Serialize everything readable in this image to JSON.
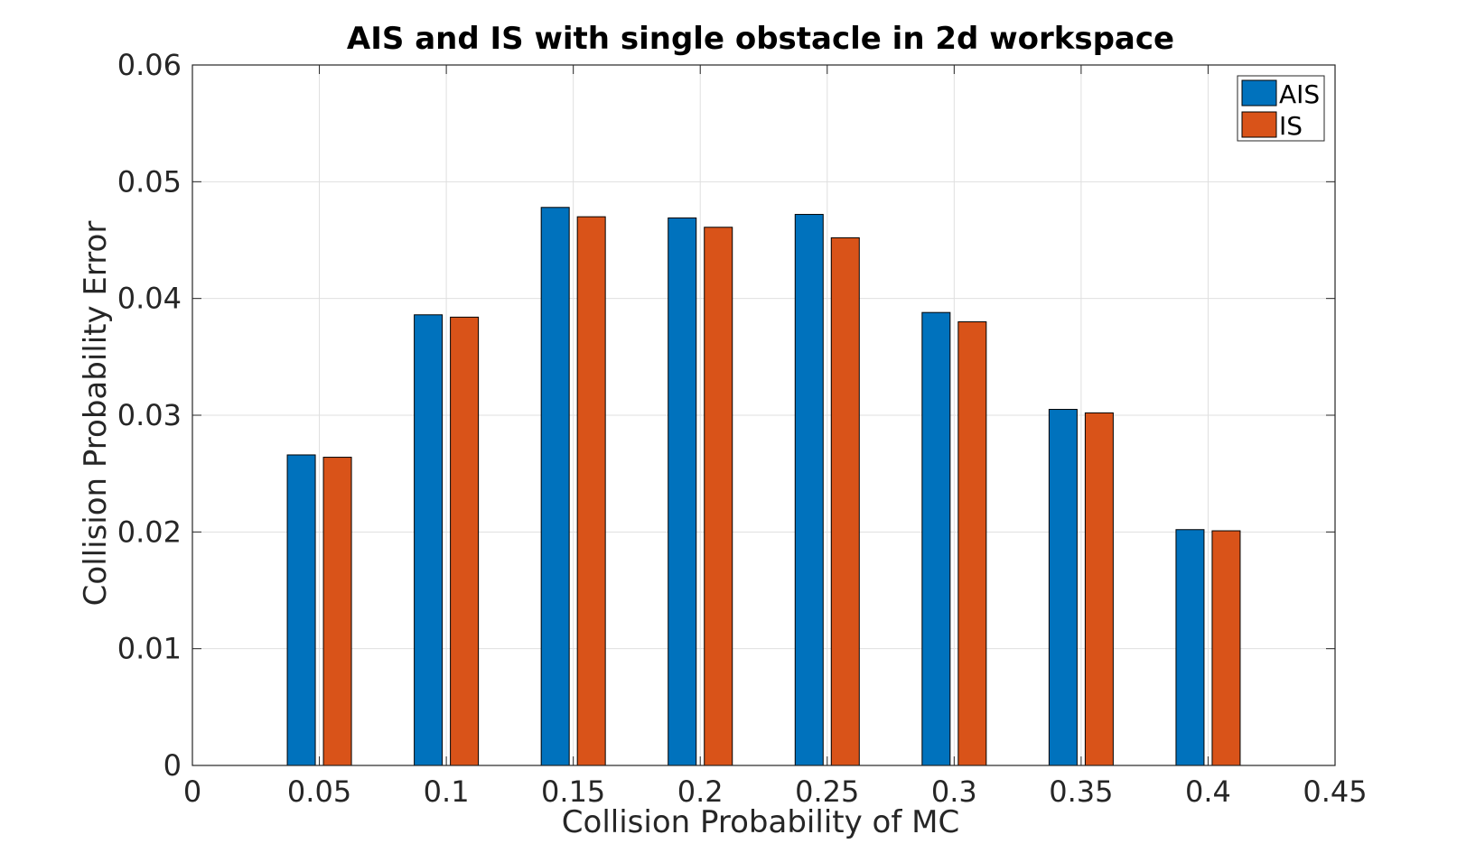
{
  "chart_data": {
    "type": "bar",
    "title": "AIS and IS with single obstacle in 2d workspace",
    "xlabel": "Collision Probability of MC",
    "ylabel": "Collision Probability Error",
    "x": [
      0.05,
      0.1,
      0.15,
      0.2,
      0.25,
      0.3,
      0.35,
      0.4
    ],
    "xlim": [
      0,
      0.45
    ],
    "ylim": [
      0,
      0.06
    ],
    "xticks": [
      "0",
      "0.05",
      "0.1",
      "0.15",
      "0.2",
      "0.25",
      "0.3",
      "0.35",
      "0.4",
      "0.45"
    ],
    "yticks": [
      "0",
      "0.01",
      "0.02",
      "0.03",
      "0.04",
      "0.05",
      "0.06"
    ],
    "grid": true,
    "legend_position": "top-right",
    "series": [
      {
        "name": "AIS",
        "color": "#0072BD",
        "values": [
          0.0266,
          0.0386,
          0.0478,
          0.0469,
          0.0472,
          0.0388,
          0.0305,
          0.0202
        ]
      },
      {
        "name": "IS",
        "color": "#D95319",
        "values": [
          0.0264,
          0.0384,
          0.047,
          0.0461,
          0.0452,
          0.038,
          0.0302,
          0.0201
        ]
      }
    ]
  }
}
